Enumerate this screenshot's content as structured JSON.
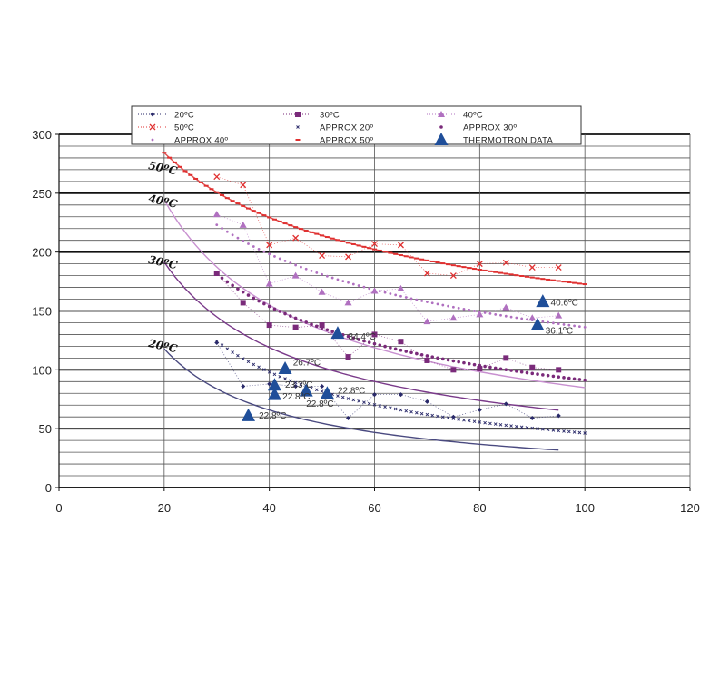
{
  "chart_data": {
    "type": "scatter",
    "xlim": [
      0,
      120
    ],
    "ylim": [
      0,
      300
    ],
    "x_ticks": [
      "0",
      "20",
      "40",
      "60",
      "80",
      "100",
      "120"
    ],
    "y_ticks": [
      "0",
      "50",
      "100",
      "150",
      "200",
      "250",
      "300"
    ],
    "grid": true,
    "legend_position": "top",
    "legend": [
      {
        "label": "20ºC",
        "series": "s20"
      },
      {
        "label": "30ºC",
        "series": "s30"
      },
      {
        "label": "40ºC",
        "series": "s40"
      },
      {
        "label": "50ºC",
        "series": "s50"
      },
      {
        "label": "APPROX 20º",
        "series": "a20"
      },
      {
        "label": "APPROX 30º",
        "series": "a30"
      },
      {
        "label": "APPROX 40º",
        "series": "a40"
      },
      {
        "label": "APPROX 50º",
        "series": "a50"
      },
      {
        "label": "THERMOTRON DATA",
        "series": "thermo"
      }
    ],
    "curve_labels": [
      {
        "text": "50ºC",
        "x": 17,
        "y": 273
      },
      {
        "text": "40ºC",
        "x": 17,
        "y": 245
      },
      {
        "text": "30ºC",
        "x": 17,
        "y": 193
      },
      {
        "text": "20ºC",
        "x": 17,
        "y": 122
      }
    ],
    "series": [
      {
        "id": "s20",
        "color": "#2a2a6a",
        "marker": "diamond",
        "x": [
          30,
          35,
          40,
          45,
          50,
          55,
          60,
          65,
          70,
          75,
          80,
          85,
          90,
          95
        ],
        "y": [
          123,
          86,
          88,
          86,
          86,
          59,
          79,
          79,
          73,
          60,
          66,
          71,
          59,
          61
        ]
      },
      {
        "id": "s30",
        "color": "#7a2a7a",
        "marker": "square",
        "x": [
          30,
          35,
          40,
          45,
          50,
          55,
          60,
          65,
          70,
          75,
          80,
          85,
          90,
          95
        ],
        "y": [
          182,
          157,
          138,
          136,
          138,
          111,
          130,
          124,
          108,
          100,
          101,
          110,
          102,
          100
        ]
      },
      {
        "id": "s40",
        "color": "#b070c0",
        "marker": "triangle",
        "x": [
          30,
          35,
          40,
          45,
          50,
          55,
          60,
          65,
          70,
          75,
          80,
          85,
          90,
          95
        ],
        "y": [
          232,
          223,
          173,
          180,
          166,
          157,
          167,
          169,
          141,
          144,
          147,
          153,
          144,
          146
        ]
      },
      {
        "id": "s50",
        "color": "#e03030",
        "marker": "x",
        "x": [
          30,
          35,
          40,
          45,
          50,
          55,
          60,
          65,
          70,
          75,
          80,
          85,
          90,
          95
        ],
        "y": [
          264,
          257,
          206,
          212,
          197,
          196,
          207,
          206,
          182,
          180,
          190,
          191,
          187,
          187
        ]
      },
      {
        "id": "thermo",
        "color": "#1f4e99",
        "marker": "bigtriangle",
        "x": [
          36,
          41,
          41,
          43,
          47,
          51,
          53,
          92,
          91
        ],
        "y": [
          61,
          79,
          87,
          101,
          82,
          80,
          131,
          158,
          138
        ]
      }
    ],
    "approx": [
      {
        "id": "a20",
        "color": "#2a2a6a",
        "marker": "xsmall",
        "k": 2020,
        "n": 0.82,
        "x_start": 30,
        "x_end": 100
      },
      {
        "id": "a30",
        "color": "#7a2a7a",
        "marker": "dot",
        "k": 1260,
        "n": 0.57,
        "x_start": 30,
        "x_end": 100
      },
      {
        "id": "a40",
        "color": "#b070c0",
        "marker": "plus",
        "k": 900,
        "n": 0.41,
        "x_start": 30,
        "x_end": 100
      },
      {
        "id": "a50",
        "color": "#e03030",
        "marker": "dash",
        "k": 720,
        "n": 0.31,
        "x_start": 20,
        "x_end": 100
      }
    ],
    "trend_lines": [
      {
        "color": "#4a4a80",
        "k": 1460,
        "n": 0.84,
        "x_start": 20,
        "x_end": 95
      },
      {
        "color": "#7a3a8a",
        "k": 1500,
        "n": 0.687,
        "x_start": 20,
        "x_end": 95
      },
      {
        "color": "#c890d0",
        "k": 1750,
        "n": 0.657,
        "x_start": 20,
        "x_end": 100
      },
      {
        "color": "#e05050",
        "k": 720,
        "n": 0.31,
        "x_start": 20,
        "x_end": 100
      }
    ],
    "annotations": [
      {
        "text": "22.8ºC",
        "x": 38,
        "y": 61
      },
      {
        "text": "22.8ºC",
        "x": 42.5,
        "y": 77
      },
      {
        "text": "23.3ºC",
        "x": 43,
        "y": 87
      },
      {
        "text": "26.7ºC",
        "x": 44.5,
        "y": 106
      },
      {
        "text": "22.8ºC",
        "x": 47,
        "y": 71
      },
      {
        "text": "22.8ºC",
        "x": 53,
        "y": 82
      },
      {
        "text": "34.4ºC",
        "x": 55,
        "y": 128
      },
      {
        "text": "40.6ºC",
        "x": 93.5,
        "y": 157
      },
      {
        "text": "36.1ºC",
        "x": 92.5,
        "y": 133
      }
    ]
  }
}
